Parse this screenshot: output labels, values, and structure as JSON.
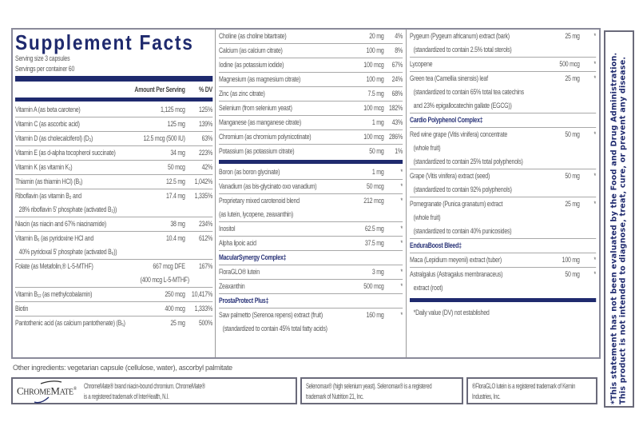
{
  "title": "Supplement Facts",
  "serving_size": "Serving size  3 capsules",
  "servings_per_container": "Servings per container  60",
  "header": {
    "amount": "Amount Per Serving",
    "dv": "% DV"
  },
  "colors": {
    "navy": "#1f2a6e",
    "text": "#5a5a5a"
  },
  "col1": [
    {
      "name": "Vitamin A (as beta carotene)",
      "amount": "1,125 mcg",
      "dv": "125%"
    },
    {
      "name": "Vitamin C (as ascorbic acid)",
      "amount": "125 mg",
      "dv": "139%"
    },
    {
      "name": "Vitamin D (as cholecalciferol) (D₃)",
      "amount": "12.5 mcg (500 IU)",
      "dv": "63%"
    },
    {
      "name": "Vitamin E (as d-alpha tocopherol succinate)",
      "amount": "34 mg",
      "dv": "223%"
    },
    {
      "name": "Vitamin K (as vitamin K₁)",
      "amount": "50 mcg",
      "dv": "42%"
    },
    {
      "name": "Thiamin (as thiamin HCl) (B₁)",
      "amount": "12.5 mg",
      "dv": "1,042%"
    },
    {
      "name": "Riboflavin (as vitamin B₂ and",
      "amount": "17.4 mg",
      "dv": "1,335%",
      "sub": [
        "28% riboflavin 5' phosphate (activated B₂))"
      ]
    },
    {
      "name": "Niacin (as niacin and 67% niacinamide)",
      "amount": "38 mg",
      "dv": "234%"
    },
    {
      "name": "Vitamin B₆ (as pyridoxine HCl and",
      "amount": "10.4 mg",
      "dv": "612%",
      "sub": [
        "40% pyridoxal 5' phosphate (activated B₆))"
      ]
    },
    {
      "name": "Folate (as Metafolin,® L-5-MTHF)",
      "amount": "667 mcg DFE",
      "dv": "167%",
      "sub_amount": "(400 mcg L-5-MTHF)"
    },
    {
      "name": "Vitamin B₁₂ (as methylcobalamin)",
      "amount": "250 mcg",
      "dv": "10,417%"
    },
    {
      "name": "Biotin",
      "amount": "400 mcg",
      "dv": "1,333%"
    },
    {
      "name": "Pantothenic acid (as calcium pantothenate) (B₅)",
      "amount": "25 mg",
      "dv": "500%",
      "last": true
    }
  ],
  "col2a": [
    {
      "name": "Choline (as choline bitartrate)",
      "amount": "20 mg",
      "dv": "4%"
    },
    {
      "name": "Calcium (as calcium citrate)",
      "amount": "100 mg",
      "dv": "8%"
    },
    {
      "name": "Iodine (as potassium iodide)",
      "amount": "100 mcg",
      "dv": "67%"
    },
    {
      "name": "Magnesium (as magnesium citrate)",
      "amount": "100 mg",
      "dv": "24%"
    },
    {
      "name": "Zinc (as zinc citrate)",
      "amount": "7.5 mg",
      "dv": "68%"
    },
    {
      "name": "Selenium (from selenium yeast)",
      "amount": "100 mcg",
      "dv": "182%"
    },
    {
      "name": "Manganese (as manganese citrate)",
      "amount": "1 mg",
      "dv": "43%"
    },
    {
      "name": "Chromium (as chromium polynicotinate)",
      "amount": "100 mcg",
      "dv": "286%"
    },
    {
      "name": "Potassium (as potassium citrate)",
      "amount": "50 mg",
      "dv": "1%",
      "last": true
    }
  ],
  "col2b": [
    {
      "name": "Boron (as boron glycinate)",
      "amount": "1 mg",
      "dv": "*"
    },
    {
      "name": "Vanadium (as bis-glycinato oxo vanadium)",
      "amount": "50 mcg",
      "dv": "*"
    },
    {
      "name": "Proprietary mixed carotenoid blend",
      "amount": "212 mcg",
      "dv": "*",
      "sub": [
        "(as lutein, lycopene, zeaxanthin)"
      ],
      "nosubindent": true
    },
    {
      "name": "Inositol",
      "amount": "62.5 mg",
      "dv": "*"
    },
    {
      "name": "Alpha lipoic acid",
      "amount": "37.5 mg",
      "dv": "*"
    },
    {
      "name": "MacularSynergy Complex‡",
      "header": true
    },
    {
      "name": "FloraGLO® lutein",
      "amount": "3 mg",
      "dv": "*"
    },
    {
      "name": "Zeaxanthin",
      "amount": "500 mcg",
      "dv": "*"
    },
    {
      "name": "ProstaProtect Plus‡",
      "header": true
    },
    {
      "name": "Saw palmetto (Serenoa repens) extract (fruit)",
      "amount": "160 mg",
      "dv": "*",
      "sub": [
        "(standardized to contain 45% total fatty acids)"
      ],
      "last": true
    }
  ],
  "col3": [
    {
      "name": "Pygeum (Pygeum africanum) extract (bark)",
      "amount": "25 mg",
      "dv": "*",
      "sub": [
        "(standardized to contain 2.5% total sterols)"
      ]
    },
    {
      "name": "Lycopene",
      "amount": "500 mcg",
      "dv": "*"
    },
    {
      "name": "Green tea (Camellia sinensis) leaf",
      "amount": "25 mg",
      "dv": "*",
      "sub": [
        "(standardized to contain 65% total tea catechins",
        "and 23% epigallocatechin gallate (EGCG))"
      ]
    },
    {
      "name": "Cardio Polyphenol Complex‡",
      "header": true
    },
    {
      "name": "Red wine grape (Vitis vinifera) concentrate",
      "amount": "50 mg",
      "dv": "*",
      "sub": [
        "(whole fruit)",
        "(standardized to contain 25% total polyphenols)"
      ]
    },
    {
      "name": "Grape (Vitis vinifera) extract (seed)",
      "amount": "50 mg",
      "dv": "*",
      "sub": [
        "(standardized to contain 92% polyphenols)"
      ]
    },
    {
      "name": "Pomegranate (Punica granatum) extract",
      "amount": "25 mg",
      "dv": "*",
      "sub": [
        "(whole fruit)",
        "(standardized to contain 40% punicosides)"
      ]
    },
    {
      "name": "EnduraBoost Bleed‡",
      "header": true
    },
    {
      "name": "Maca (Lepidium meyenii) extract (tuber)",
      "amount": "100 mg",
      "dv": "*"
    },
    {
      "name": "Astralgalus (Astragalus membranaceus)",
      "amount": "50 mg",
      "dv": "*",
      "sub": [
        "extract (root)"
      ],
      "last": true
    }
  ],
  "footnote": "*Daily value (DV) not established",
  "other_ingredients": "Other ingredients: vegetarian capsule (cellulose, water), ascorbyl palmitate",
  "trademarks": {
    "chromemate_logo": "CHROMEMATE®",
    "chromemate_line1": "ChromeMate® brand niacin-bound chromium. ChromeMate®",
    "chromemate_line2": "is a registered trademark of InterHealth, N.I.",
    "selenomax_line1": "Selenomax® (high selenium yeast). Selenomax® is a registered",
    "selenomax_line2": "trademark of Nutrition 21, Inc.",
    "floraglo_line1": "®FloraGLO lutein is a registered trademark of Kemin",
    "floraglo_line2": "Industries, Inc."
  },
  "disclaimer": "*This statement has not been evaluated by the Food and Drug Administration. This product is not intended to diagnose, treat, cure, or prevent any disease."
}
